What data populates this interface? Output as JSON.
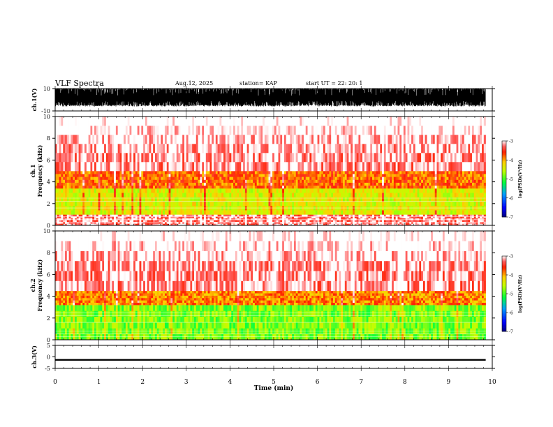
{
  "header": {
    "title": "VLF Spectra",
    "date": "Aug.12, 2025",
    "station": "station= KAP",
    "start": "start  UT  =   22: 20: 1"
  },
  "chart_data": [
    {
      "type": "line",
      "name": "ch1-waveform",
      "ylabel": "ch.1(V)",
      "ylim": [
        -10,
        10
      ],
      "yticks": [
        "10",
        "-10"
      ],
      "description_level": "saturated noise oscillating between about -6 and +10 V"
    },
    {
      "type": "heatmap",
      "name": "ch1-spectrogram",
      "ylabel": "ch.1 Frequency (kHz)",
      "ylim": [
        0,
        10
      ],
      "yticks": [
        "0",
        "2",
        "4",
        "6",
        "8",
        "10"
      ],
      "colorbar": {
        "label": "log(PSD)(V²/Hz)",
        "ticks": [
          "-3",
          "-4",
          "-5",
          "-6",
          "-7"
        ],
        "range": [
          -7,
          -3
        ]
      },
      "bands": [
        {
          "from_khz": 0,
          "to_khz": 1.0,
          "level": -3.2
        },
        {
          "from_khz": 1.0,
          "to_khz": 3.4,
          "level": -4.4
        },
        {
          "from_khz": 3.4,
          "to_khz": 5.0,
          "level": -3.8
        },
        {
          "from_khz": 5.0,
          "to_khz": 10,
          "level": -3.2
        }
      ]
    },
    {
      "type": "heatmap",
      "name": "ch2-spectrogram",
      "ylabel": "ch.2 Frequency (kHz)",
      "ylim": [
        0,
        10
      ],
      "yticks": [
        "0",
        "2",
        "4",
        "6",
        "8",
        "10"
      ],
      "colorbar": {
        "label": "log(PSD)(V²/Hz)",
        "ticks": [
          "-3",
          "-4",
          "-5",
          "-6",
          "-7"
        ],
        "range": [
          -7,
          -3
        ]
      },
      "bands": [
        {
          "from_khz": 0,
          "to_khz": 3.2,
          "level": -4.8
        },
        {
          "from_khz": 3.2,
          "to_khz": 4.5,
          "level": -3.9
        },
        {
          "from_khz": 4.5,
          "to_khz": 10,
          "level": -3.2
        }
      ]
    },
    {
      "type": "line",
      "name": "ch3-waveform",
      "ylabel": "ch.3(V)",
      "ylim": [
        -5,
        5
      ],
      "yticks": [
        "5",
        "0",
        "-5"
      ],
      "center_level_v": -1.3,
      "band_halfwidth_v": 0.35
    }
  ],
  "x_axis": {
    "label": "Time (min)",
    "range": [
      0,
      10
    ],
    "ticks": [
      "0",
      "1",
      "2",
      "3",
      "4",
      "5",
      "6",
      "7",
      "8",
      "9",
      "10"
    ],
    "data_end_min": 9.85
  }
}
